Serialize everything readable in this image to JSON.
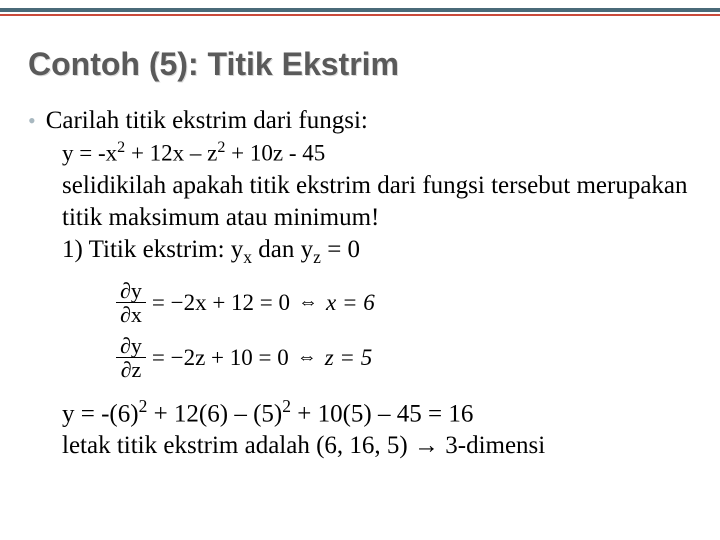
{
  "top_stripe_color": "#4a6a78",
  "accent_color": "#c94a3b",
  "title": "Contoh (5): Titik Ekstrim",
  "bullet_text": "Carilah titik ekstrim dari fungsi:",
  "equation1_pre": "y = -x",
  "equation1_mid1": " + 12x – z",
  "equation1_mid2": " + 10z - 45",
  "line2": "selidikilah apakah titik ekstrim dari fungsi tersebut merupakan titik maksimum atau minimum!",
  "line3_pre": "1)  Titik ekstrim: y",
  "line3_mid": " dan y",
  "line3_post": " = 0",
  "math": {
    "d1_num": "∂y",
    "d1_den": "∂x",
    "d1_rhs": " = −2x + 12 = 0 ",
    "d1_solve": " x = 6",
    "d2_num": "∂y",
    "d2_den": "∂z",
    "d2_rhs": " = −2z + 10 = 0 ",
    "d2_solve": " z = 5"
  },
  "result_pre": "y = -(6)",
  "result_mid1": " + 12(6) – (5)",
  "result_mid2": " + 10(5) – 45 = 16",
  "conclusion": "letak titik ekstrim adalah (6, 16, 5) → 3-dimensi"
}
